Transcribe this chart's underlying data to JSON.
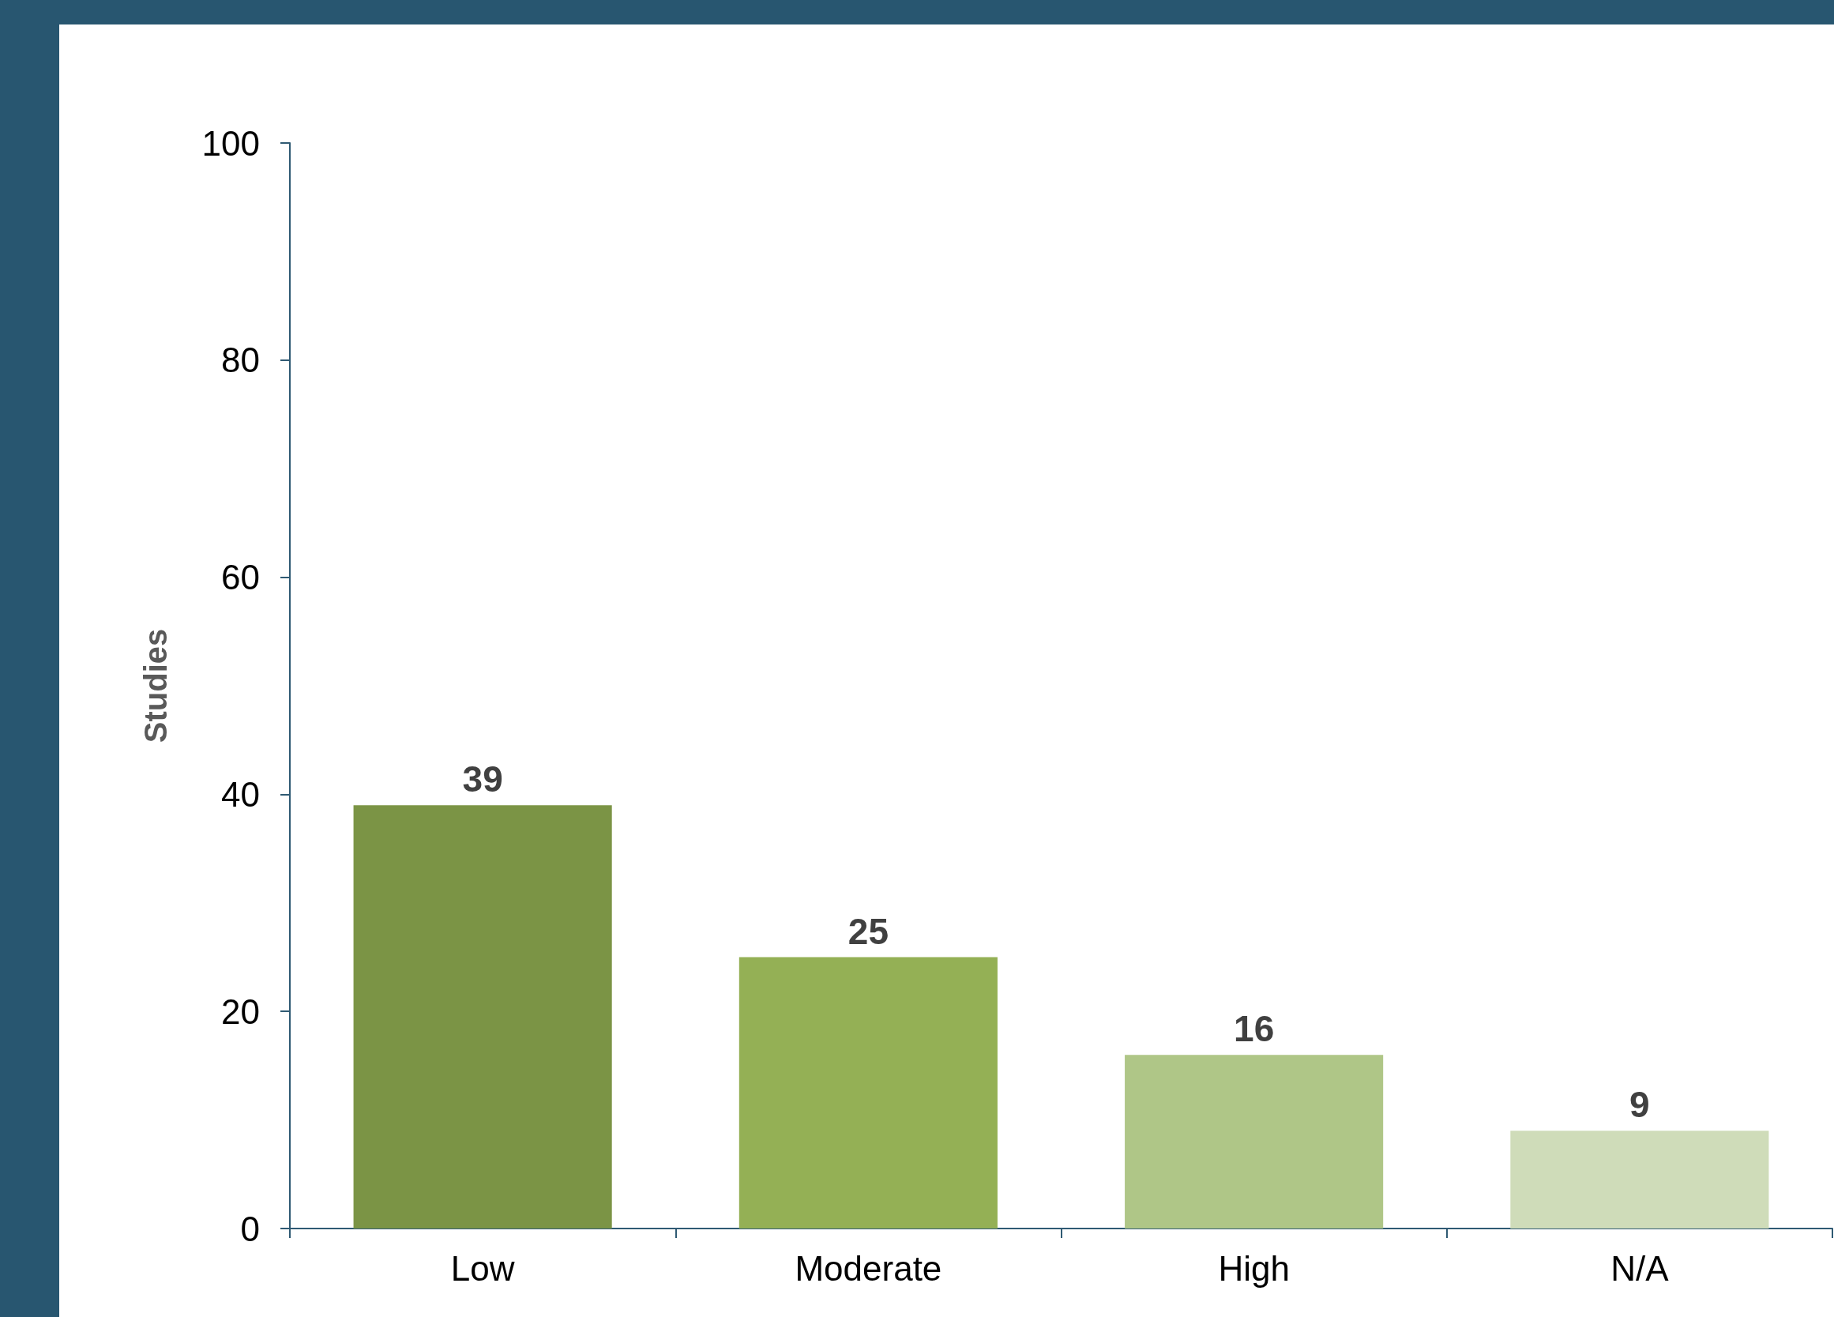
{
  "chart_data": {
    "type": "bar",
    "ylabel": "Studies",
    "categories": [
      "Low",
      "Moderate",
      "High",
      "N/A"
    ],
    "values": [
      39,
      25,
      16,
      9
    ],
    "colors": [
      "#7b9445",
      "#94b055",
      "#afc687",
      "#cfdcb9"
    ],
    "ylim": [
      0,
      100
    ],
    "yticks": [
      0,
      20,
      40,
      60,
      80,
      100
    ],
    "data_labels": true,
    "grid": false
  }
}
